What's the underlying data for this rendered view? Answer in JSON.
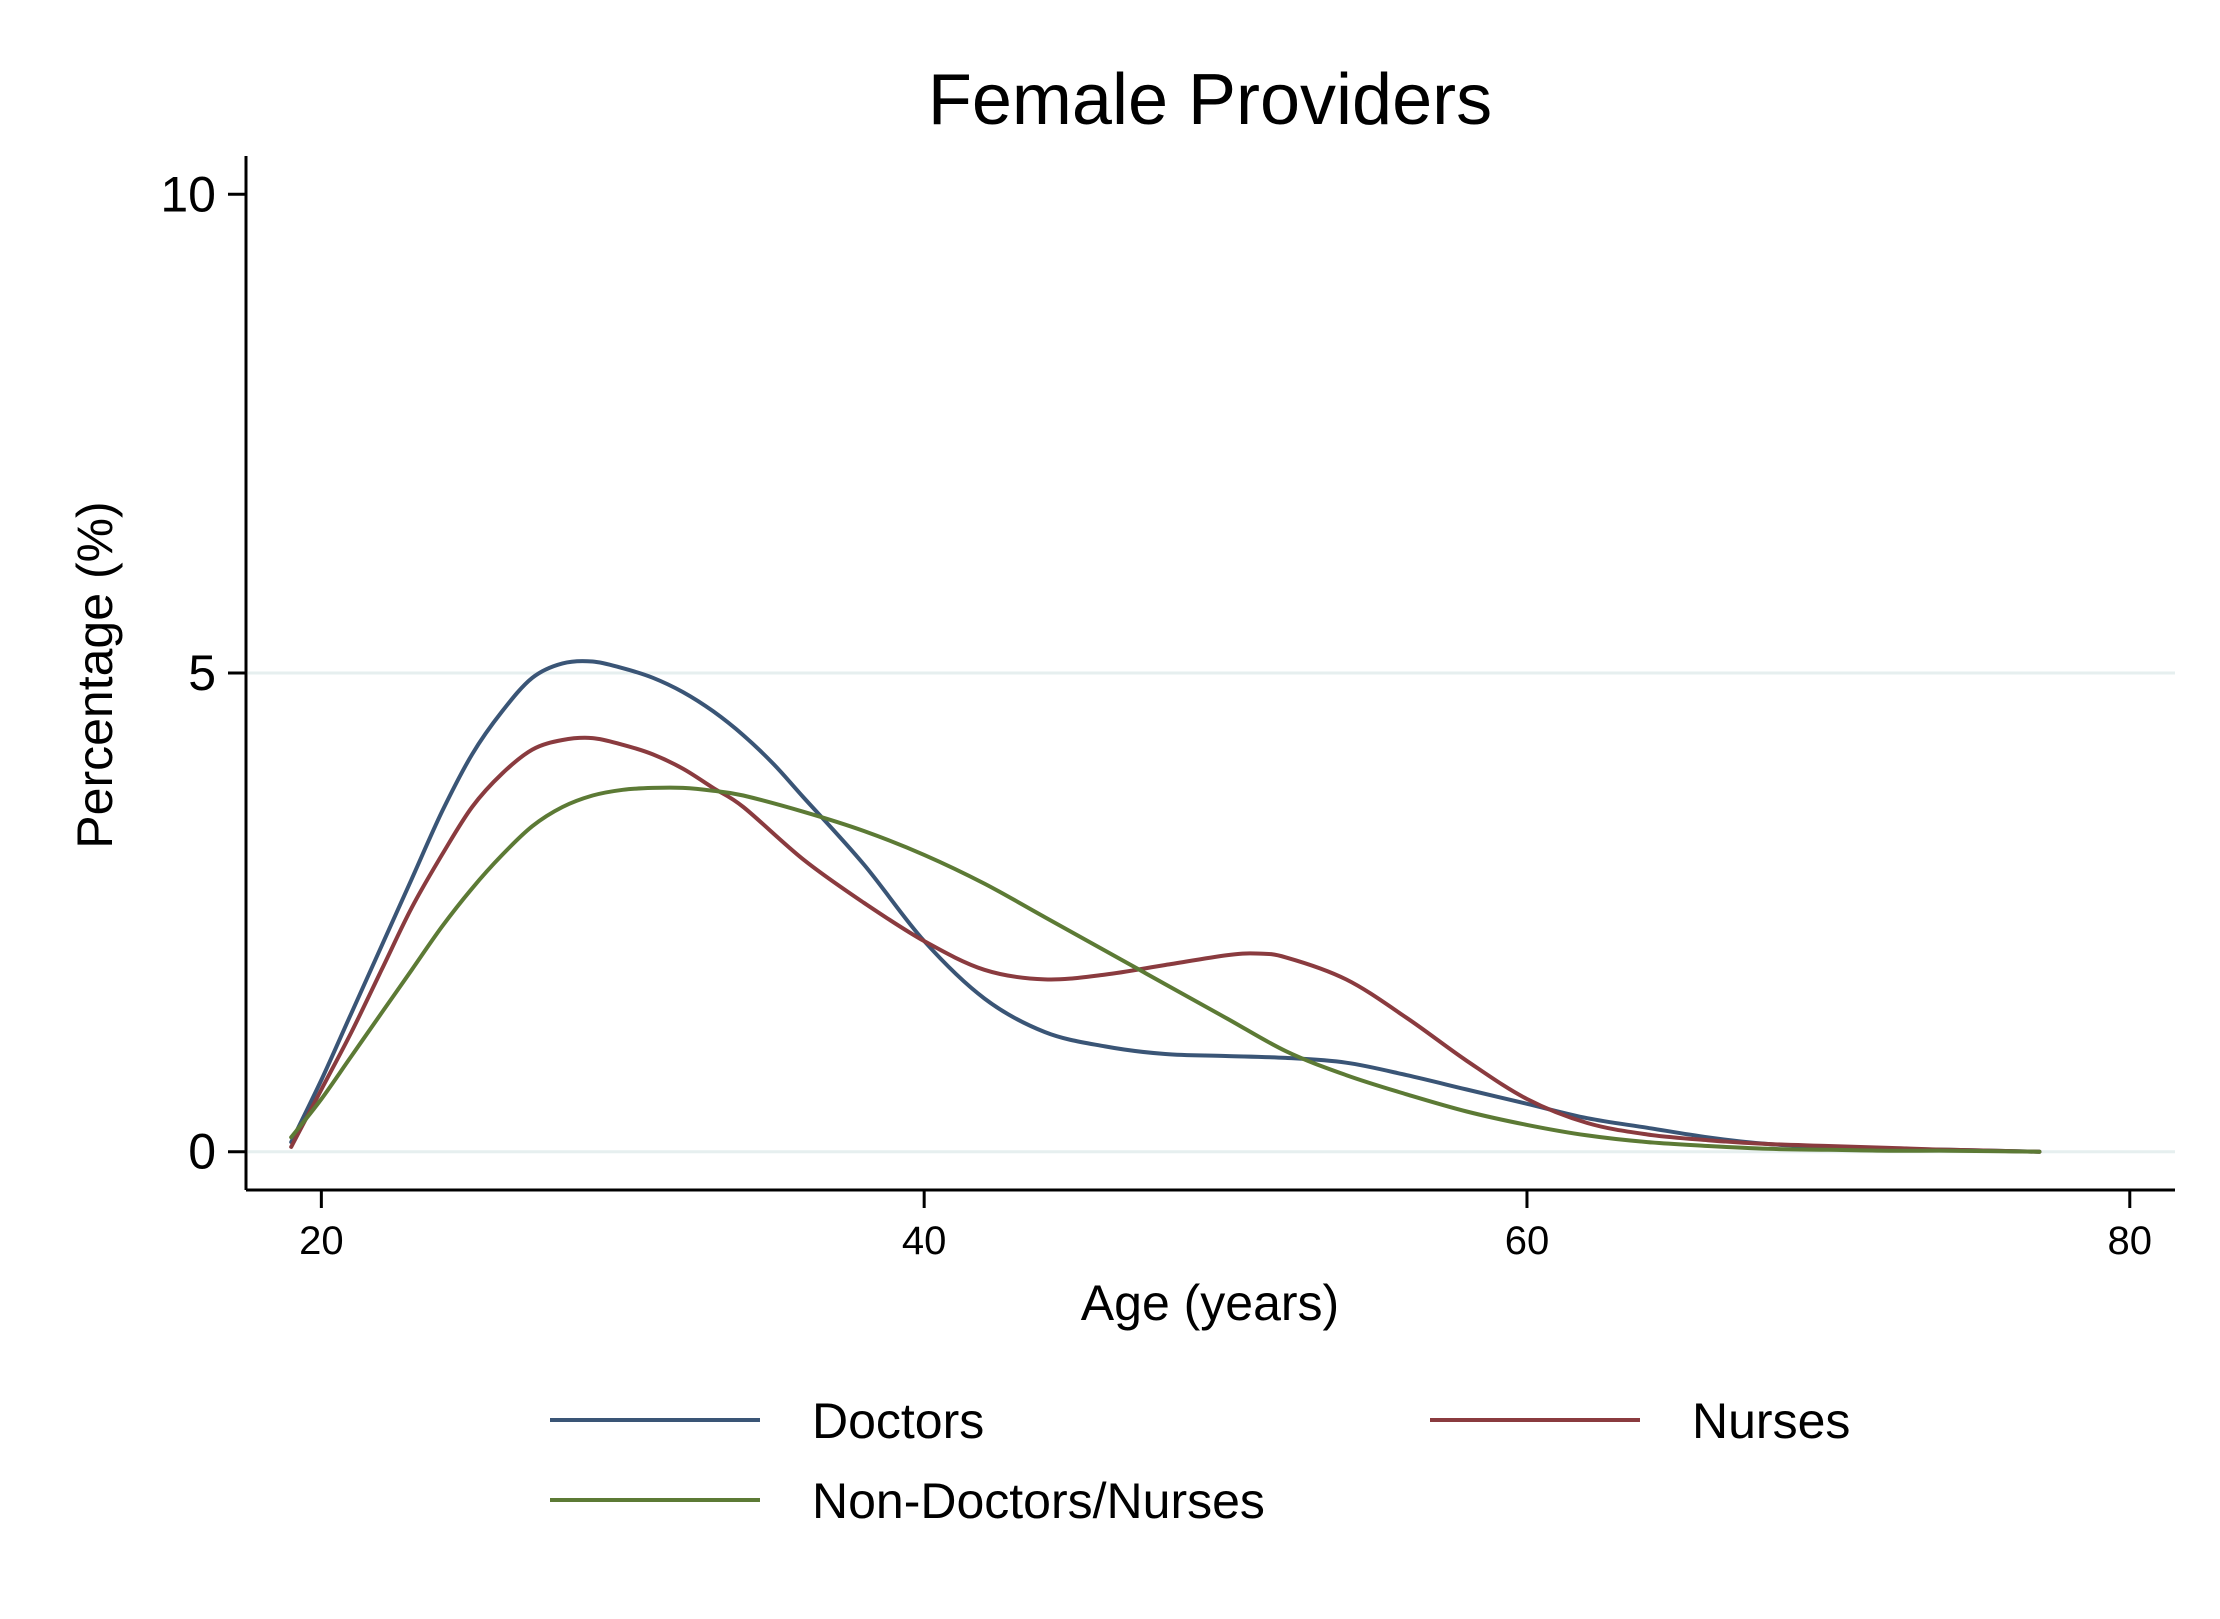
{
  "chart_data": {
    "type": "line",
    "title": "Female Providers",
    "xlabel": "Age (years)",
    "ylabel": "Percentage (%)",
    "xlim": [
      17.5,
      81.5
    ],
    "ylim": [
      -0.4,
      10.4
    ],
    "xticks": [
      20,
      40,
      60,
      80
    ],
    "yticks": [
      0,
      5,
      10
    ],
    "grid": "horizontal",
    "legend_position": "bottom",
    "series": [
      {
        "name": "Doctors",
        "color": "#3a5576",
        "x": [
          19,
          20,
          21,
          22,
          23,
          24,
          25,
          26,
          27,
          28,
          29,
          30,
          31,
          32,
          33,
          34,
          35,
          36,
          38,
          40,
          42,
          44,
          46,
          48,
          50,
          52,
          54,
          56,
          58,
          60,
          62,
          64,
          66,
          68,
          70,
          72,
          74,
          77
        ],
        "y": [
          0.1,
          0.75,
          1.45,
          2.15,
          2.85,
          3.55,
          4.15,
          4.6,
          4.95,
          5.1,
          5.12,
          5.05,
          4.95,
          4.8,
          4.6,
          4.35,
          4.05,
          3.7,
          3.0,
          2.2,
          1.6,
          1.25,
          1.1,
          1.02,
          1.0,
          0.98,
          0.93,
          0.8,
          0.65,
          0.5,
          0.35,
          0.25,
          0.15,
          0.08,
          0.05,
          0.03,
          0.02,
          0.0
        ]
      },
      {
        "name": "Nurses",
        "color": "#8a3b3f",
        "x": [
          19,
          20,
          21,
          22,
          23,
          24,
          25,
          26,
          27,
          28,
          29,
          30,
          31,
          32,
          33,
          34,
          36,
          38,
          40,
          42,
          44,
          46,
          48,
          50,
          51,
          52,
          54,
          56,
          58,
          60,
          62,
          64,
          66,
          68,
          70,
          72,
          74,
          77
        ],
        "y": [
          0.05,
          0.65,
          1.25,
          1.9,
          2.55,
          3.1,
          3.6,
          3.95,
          4.2,
          4.3,
          4.32,
          4.25,
          4.15,
          4.0,
          3.8,
          3.6,
          3.05,
          2.6,
          2.2,
          1.9,
          1.8,
          1.85,
          1.95,
          2.05,
          2.07,
          2.03,
          1.8,
          1.4,
          0.95,
          0.55,
          0.3,
          0.18,
          0.12,
          0.08,
          0.06,
          0.04,
          0.02,
          0.0
        ]
      },
      {
        "name": "Non-Doctors/Nurses",
        "color": "#5c7a35",
        "x": [
          19,
          20,
          21,
          22,
          23,
          24,
          25,
          26,
          27,
          28,
          29,
          30,
          31,
          32,
          33,
          34,
          36,
          38,
          40,
          42,
          44,
          46,
          48,
          50,
          52,
          54,
          56,
          58,
          60,
          62,
          64,
          66,
          68,
          70,
          72,
          74,
          77
        ],
        "y": [
          0.15,
          0.55,
          1.0,
          1.45,
          1.9,
          2.35,
          2.75,
          3.1,
          3.4,
          3.6,
          3.72,
          3.78,
          3.8,
          3.8,
          3.77,
          3.72,
          3.55,
          3.35,
          3.1,
          2.8,
          2.45,
          2.1,
          1.75,
          1.4,
          1.05,
          0.8,
          0.6,
          0.42,
          0.28,
          0.17,
          0.1,
          0.06,
          0.03,
          0.02,
          0.01,
          0.01,
          0.0
        ]
      }
    ]
  }
}
